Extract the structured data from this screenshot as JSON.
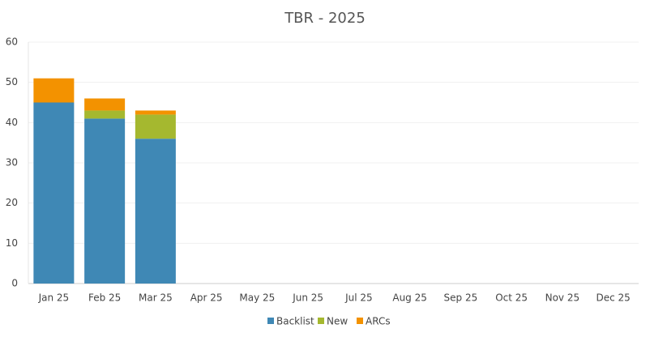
{
  "chart_data": {
    "type": "stacked_bar",
    "title": "TBR - 2025",
    "categories": [
      "Jan 25",
      "Feb 25",
      "Mar 25",
      "Apr 25",
      "May 25",
      "Jun 25",
      "Jul 25",
      "Aug 25",
      "Sep 25",
      "Oct 25",
      "Nov 25",
      "Dec 25"
    ],
    "series": [
      {
        "name": "Backlist",
        "color": "#3f88b5",
        "values": [
          45,
          41,
          36,
          null,
          null,
          null,
          null,
          null,
          null,
          null,
          null,
          null
        ]
      },
      {
        "name": "New",
        "color": "#a5b82f",
        "values": [
          0,
          2,
          6,
          null,
          null,
          null,
          null,
          null,
          null,
          null,
          null,
          null
        ]
      },
      {
        "name": "ARCs",
        "color": "#f39200",
        "values": [
          6,
          3,
          1,
          null,
          null,
          null,
          null,
          null,
          null,
          null,
          null,
          null
        ]
      }
    ],
    "ylim": [
      0,
      60
    ],
    "yticks": [
      0,
      10,
      20,
      30,
      40,
      50,
      60
    ],
    "grid": true,
    "legend": "bottom"
  }
}
